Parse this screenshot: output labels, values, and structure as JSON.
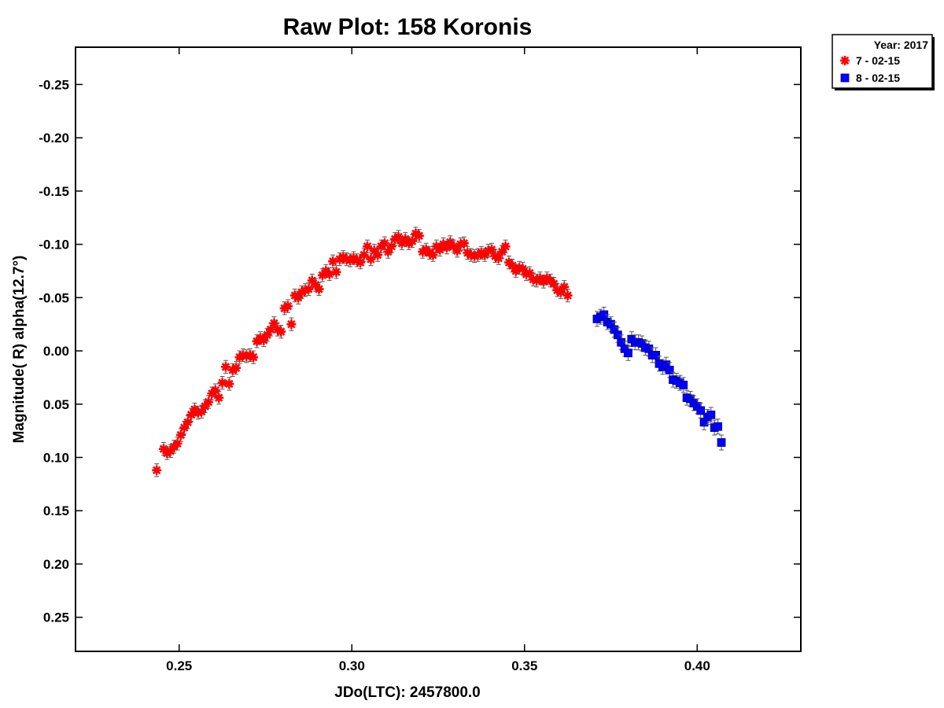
{
  "chart_data": {
    "type": "scatter",
    "title": "Raw Plot: 158 Koronis",
    "xlabel": "JDo(LTC): 2457800.0",
    "ylabel": "Magnitude( R) alpha(12.7°)",
    "xlim": [
      0.22,
      0.43
    ],
    "ylim": [
      -0.285,
      0.282
    ],
    "y_inverted": true,
    "x_ticks": [
      "0.25",
      "0.30",
      "0.35",
      "0.40"
    ],
    "x_tick_values": [
      0.25,
      0.3,
      0.35,
      0.4
    ],
    "y_ticks": [
      "-0.25",
      "-0.20",
      "-0.15",
      "-0.10",
      "-0.05",
      "0.00",
      "0.05",
      "0.10",
      "0.15",
      "0.20",
      "0.25"
    ],
    "y_tick_values": [
      -0.25,
      -0.2,
      -0.15,
      -0.1,
      -0.05,
      0.0,
      0.05,
      0.1,
      0.15,
      0.2,
      0.25
    ],
    "grid": false,
    "error_bars": true,
    "legend": {
      "placement": "outside-top-right",
      "header": "Year: 2017",
      "entries": [
        "7 - 02-15",
        "8 - 02-15"
      ]
    },
    "series": [
      {
        "name": "7 - 02-15",
        "marker": "asterisk",
        "color": "#ff0000",
        "x": [
          0.2435,
          0.2455,
          0.2465,
          0.2475,
          0.2485,
          0.2495,
          0.2505,
          0.2515,
          0.2525,
          0.2535,
          0.2545,
          0.2555,
          0.2565,
          0.2575,
          0.2585,
          0.2595,
          0.2605,
          0.2615,
          0.2625,
          0.2635,
          0.2645,
          0.2655,
          0.2665,
          0.2675,
          0.2685,
          0.2695,
          0.2705,
          0.2715,
          0.2725,
          0.2735,
          0.2745,
          0.2755,
          0.2765,
          0.2775,
          0.2785,
          0.2795,
          0.2805,
          0.2815,
          0.2825,
          0.2835,
          0.2845,
          0.2855,
          0.2865,
          0.2875,
          0.2885,
          0.2895,
          0.2905,
          0.2915,
          0.2925,
          0.2935,
          0.2945,
          0.2955,
          0.2965,
          0.2975,
          0.2985,
          0.2995,
          0.3005,
          0.3015,
          0.3025,
          0.3035,
          0.3045,
          0.3055,
          0.3065,
          0.3075,
          0.3085,
          0.3095,
          0.3105,
          0.3115,
          0.3125,
          0.3135,
          0.3145,
          0.3155,
          0.3165,
          0.3175,
          0.3185,
          0.3195,
          0.3205,
          0.3215,
          0.3225,
          0.3235,
          0.3245,
          0.3255,
          0.3265,
          0.3275,
          0.3285,
          0.3295,
          0.3305,
          0.3315,
          0.3325,
          0.3335,
          0.3345,
          0.3355,
          0.3365,
          0.3375,
          0.3385,
          0.3395,
          0.3405,
          0.3415,
          0.3425,
          0.3435,
          0.3445,
          0.3455,
          0.3465,
          0.3475,
          0.3485,
          0.3495,
          0.3505,
          0.3515,
          0.3525,
          0.3535,
          0.3545,
          0.3555,
          0.3565,
          0.3575,
          0.3585,
          0.3595,
          0.3605,
          0.3615,
          0.3625
        ],
        "y": [
          0.112,
          0.092,
          0.096,
          0.094,
          0.09,
          0.087,
          0.079,
          0.072,
          0.067,
          0.06,
          0.055,
          0.058,
          0.057,
          0.052,
          0.048,
          0.04,
          0.037,
          0.044,
          0.03,
          0.015,
          0.031,
          0.018,
          0.016,
          0.006,
          0.004,
          0.005,
          0.004,
          0.006,
          -0.009,
          -0.012,
          -0.01,
          -0.015,
          -0.02,
          -0.026,
          -0.02,
          -0.018,
          -0.04,
          -0.042,
          -0.025,
          -0.052,
          -0.05,
          -0.055,
          -0.057,
          -0.058,
          -0.066,
          -0.062,
          -0.058,
          -0.071,
          -0.075,
          -0.072,
          -0.084,
          -0.074,
          -0.086,
          -0.088,
          -0.086,
          -0.085,
          -0.087,
          -0.085,
          -0.083,
          -0.09,
          -0.098,
          -0.086,
          -0.094,
          -0.09,
          -0.098,
          -0.101,
          -0.093,
          -0.098,
          -0.105,
          -0.107,
          -0.101,
          -0.105,
          -0.101,
          -0.103,
          -0.11,
          -0.108,
          -0.093,
          -0.095,
          -0.092,
          -0.09,
          -0.098,
          -0.095,
          -0.1,
          -0.097,
          -0.102,
          -0.098,
          -0.094,
          -0.1,
          -0.101,
          -0.092,
          -0.09,
          -0.089,
          -0.09,
          -0.092,
          -0.09,
          -0.094,
          -0.095,
          -0.089,
          -0.087,
          -0.093,
          -0.098,
          -0.083,
          -0.08,
          -0.075,
          -0.078,
          -0.077,
          -0.072,
          -0.073,
          -0.067,
          -0.066,
          -0.068,
          -0.065,
          -0.068,
          -0.066,
          -0.063,
          -0.057,
          -0.055,
          -0.06,
          -0.052
        ],
        "y_err": 0.006
      },
      {
        "name": "8 - 02-15",
        "marker": "square",
        "color": "#0000ff",
        "x": [
          0.371,
          0.372,
          0.373,
          0.374,
          0.375,
          0.376,
          0.377,
          0.378,
          0.379,
          0.38,
          0.381,
          0.382,
          0.383,
          0.384,
          0.385,
          0.386,
          0.387,
          0.388,
          0.389,
          0.39,
          0.391,
          0.392,
          0.393,
          0.394,
          0.395,
          0.396,
          0.397,
          0.398,
          0.399,
          0.4,
          0.401,
          0.402,
          0.403,
          0.404,
          0.405,
          0.406,
          0.407
        ],
        "y": [
          -0.03,
          -0.032,
          -0.034,
          -0.027,
          -0.025,
          -0.02,
          -0.015,
          -0.008,
          -0.002,
          0.002,
          -0.011,
          -0.008,
          -0.008,
          -0.007,
          -0.003,
          -0.002,
          0.004,
          0.004,
          0.012,
          0.015,
          0.013,
          0.018,
          0.027,
          0.028,
          0.03,
          0.032,
          0.044,
          0.045,
          0.049,
          0.052,
          0.056,
          0.067,
          0.062,
          0.06,
          0.072,
          0.071,
          0.086
        ],
        "y_err": 0.007
      }
    ]
  }
}
